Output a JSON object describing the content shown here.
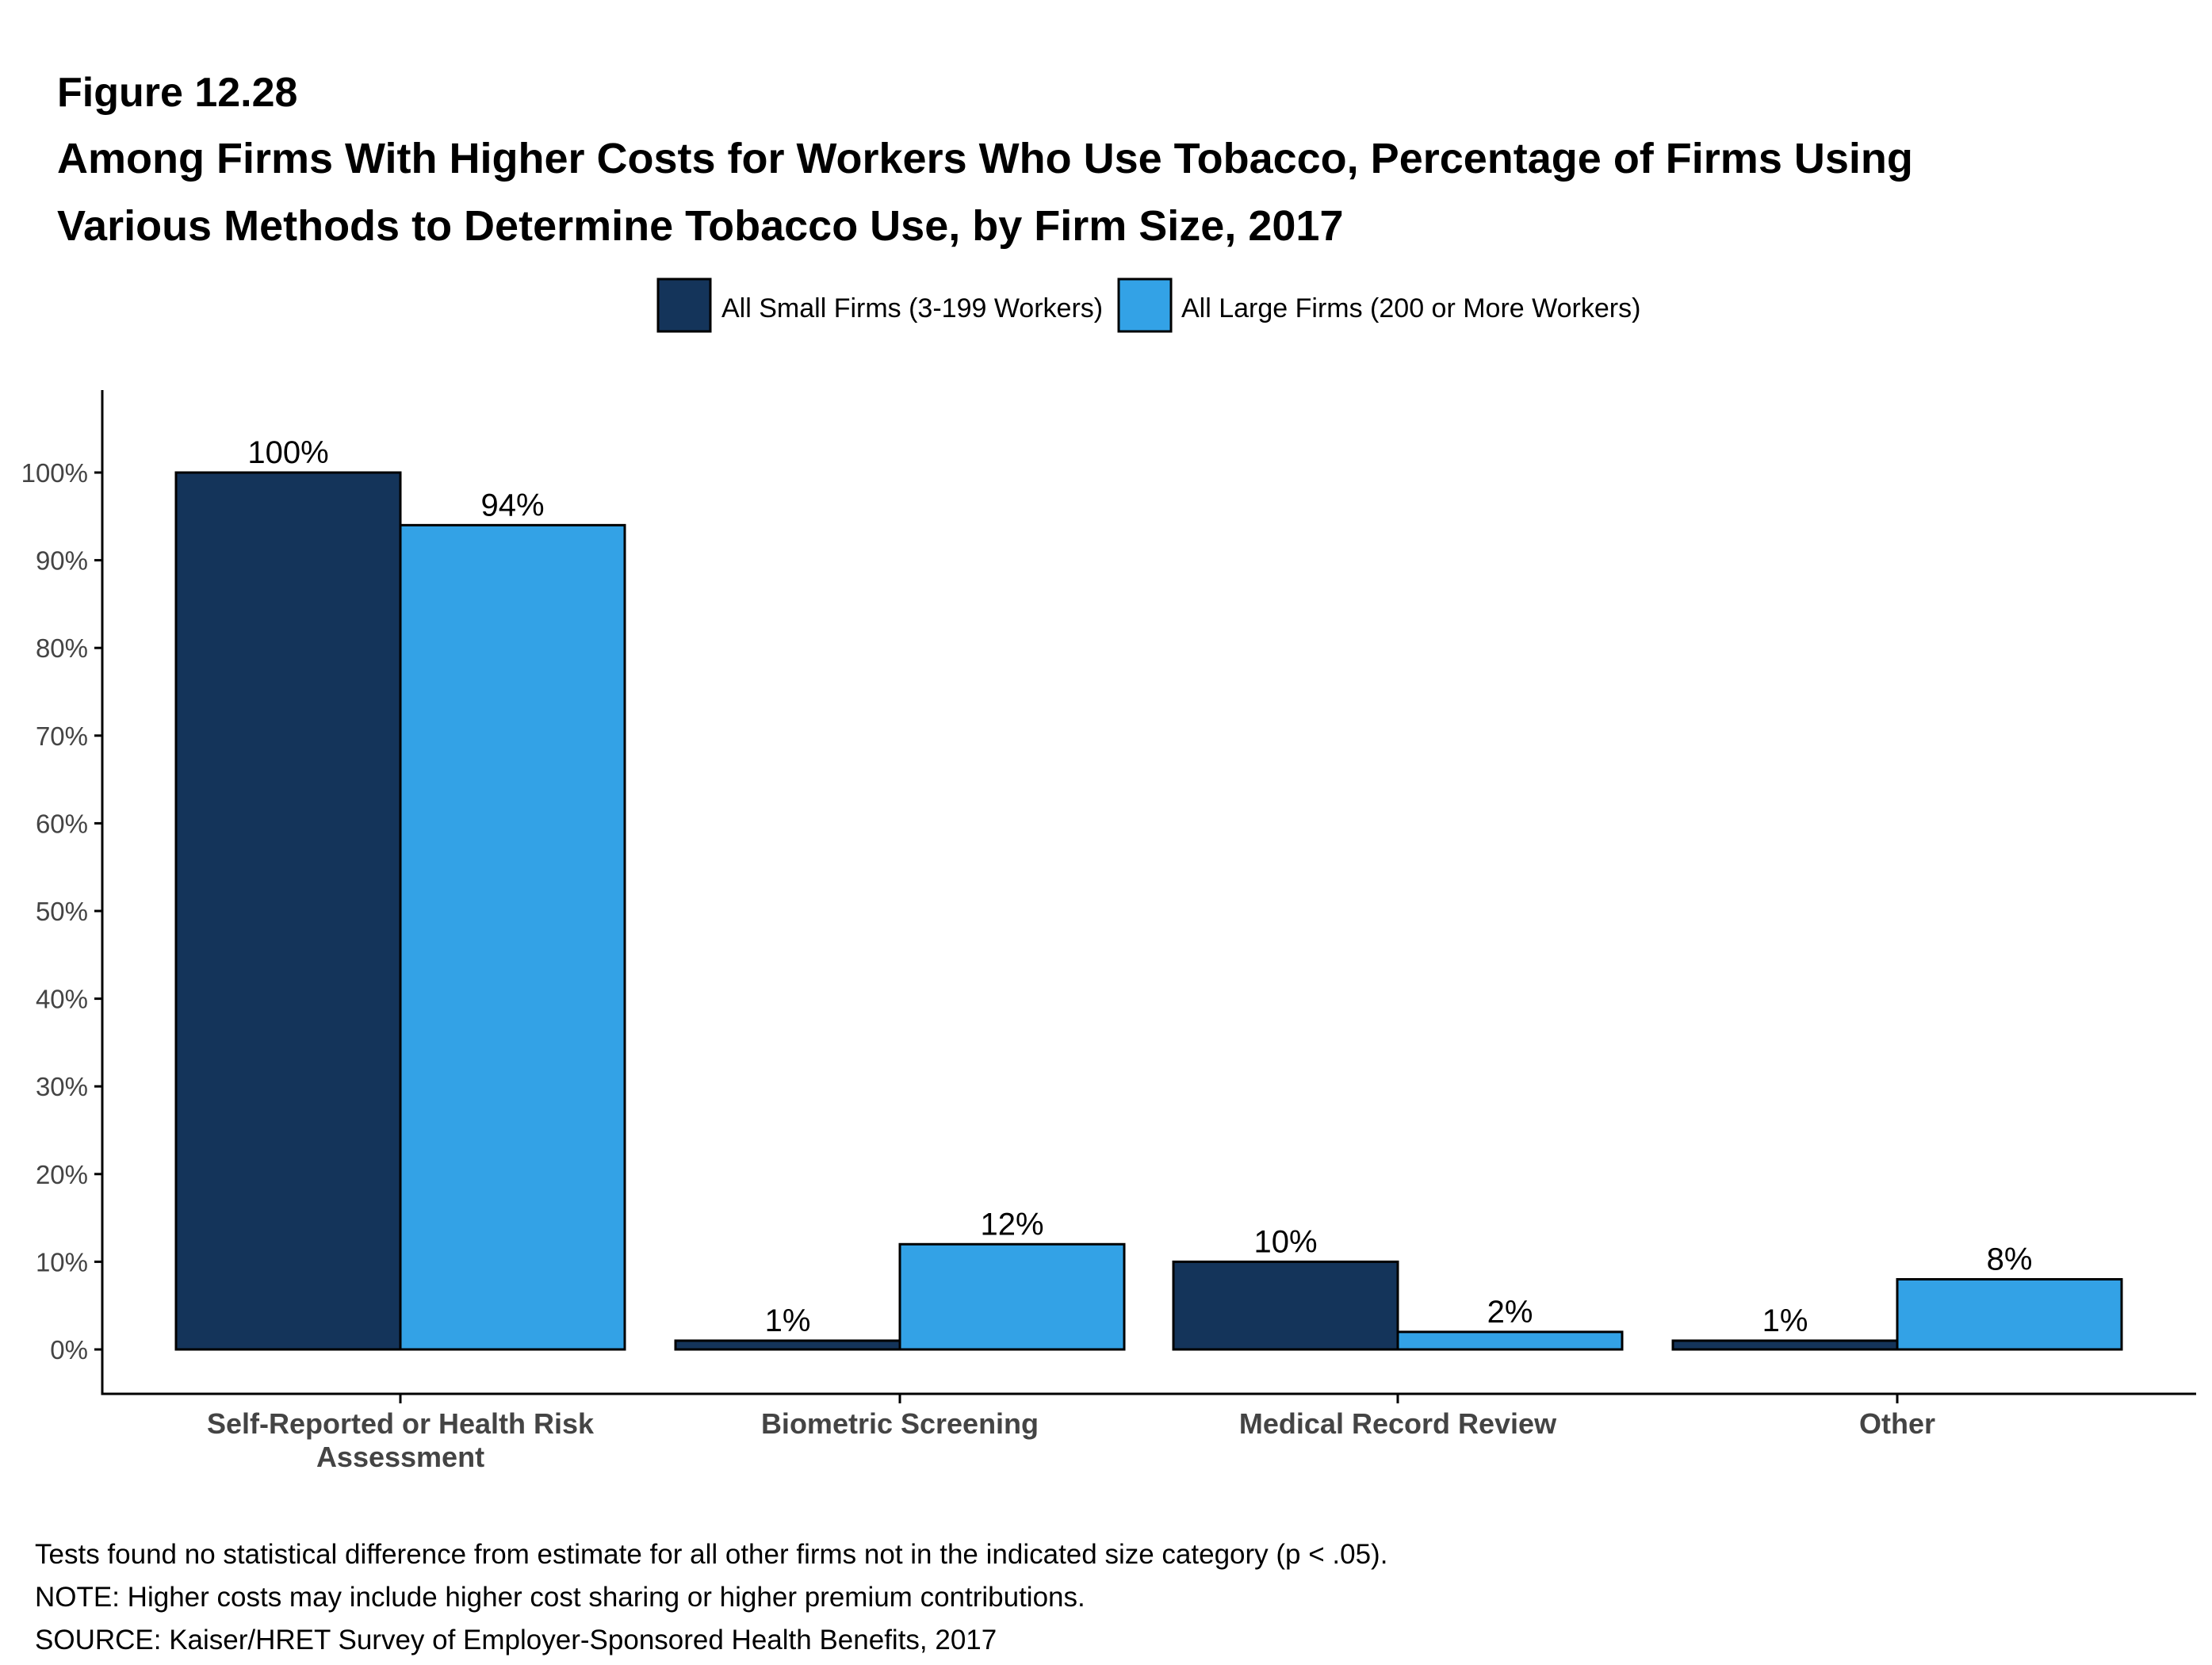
{
  "figure_number": "Figure 12.28",
  "title_lines": [
    "Among Firms With Higher Costs for Workers Who Use Tobacco, Percentage of Firms Using",
    "Various Methods to Determine Tobacco Use, by Firm Size, 2017"
  ],
  "notes": [
    "Tests found no statistical difference from estimate for all other firms not in the indicated size category (p < .05).",
    "NOTE: Higher costs may include higher cost sharing or higher premium contributions.",
    "SOURCE: Kaiser/HRET Survey of Employer-Sponsored Health Benefits, 2017"
  ],
  "colors": {
    "small": "#14345a",
    "large": "#33a2e6",
    "axis": "#000000"
  },
  "chart_data": {
    "type": "bar",
    "categories": [
      [
        "Self-Reported or Health Risk",
        "Assessment"
      ],
      [
        "Biometric Screening"
      ],
      [
        "Medical Record Review"
      ],
      [
        "Other"
      ]
    ],
    "series": [
      {
        "name": "All Small Firms (3-199 Workers)",
        "values": [
          100,
          1,
          10,
          1
        ],
        "labels": [
          "100%",
          "1%",
          "10%",
          "1%"
        ]
      },
      {
        "name": "All Large Firms (200 or More Workers)",
        "values": [
          94,
          12,
          2,
          8
        ],
        "labels": [
          "94%",
          "12%",
          "2%",
          "8%"
        ]
      }
    ],
    "y_ticks": [
      0,
      10,
      20,
      30,
      40,
      50,
      60,
      70,
      80,
      90,
      100
    ],
    "y_tick_labels": [
      "0%",
      "10%",
      "20%",
      "30%",
      "40%",
      "50%",
      "60%",
      "70%",
      "80%",
      "90%",
      "100%"
    ],
    "ylim": [
      -5,
      110
    ],
    "xlabel": "",
    "ylabel": "",
    "legend_position": "top-center"
  }
}
